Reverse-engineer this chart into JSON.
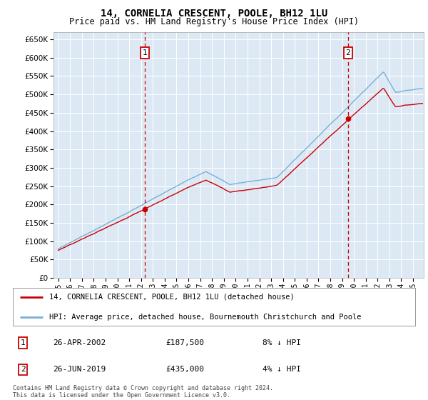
{
  "title": "14, CORNELIA CRESCENT, POOLE, BH12 1LU",
  "subtitle": "Price paid vs. HM Land Registry's House Price Index (HPI)",
  "legend_line1": "14, CORNELIA CRESCENT, POOLE, BH12 1LU (detached house)",
  "legend_line2": "HPI: Average price, detached house, Bournemouth Christchurch and Poole",
  "transaction1_date": "26-APR-2002",
  "transaction1_price": 187500,
  "transaction1_price_str": "£187,500",
  "transaction1_hpi": "8% ↓ HPI",
  "transaction2_date": "26-JUN-2019",
  "transaction2_price": 435000,
  "transaction2_price_str": "£435,000",
  "transaction2_hpi": "4% ↓ HPI",
  "footer": "Contains HM Land Registry data © Crown copyright and database right 2024.\nThis data is licensed under the Open Government Licence v3.0.",
  "hpi_color": "#7ab0d4",
  "price_color": "#cc0000",
  "marker_color": "#cc0000",
  "vline_color": "#cc0000",
  "background_plot": "#dce9f5",
  "background_fig": "#ffffff",
  "grid_color": "#ffffff",
  "ylim": [
    0,
    670000
  ],
  "yticks": [
    0,
    50000,
    100000,
    150000,
    200000,
    250000,
    300000,
    350000,
    400000,
    450000,
    500000,
    550000,
    600000,
    650000
  ],
  "transaction1_x": 2002.32,
  "transaction2_x": 2019.49,
  "xmin": 1994.6,
  "xmax": 2025.9
}
